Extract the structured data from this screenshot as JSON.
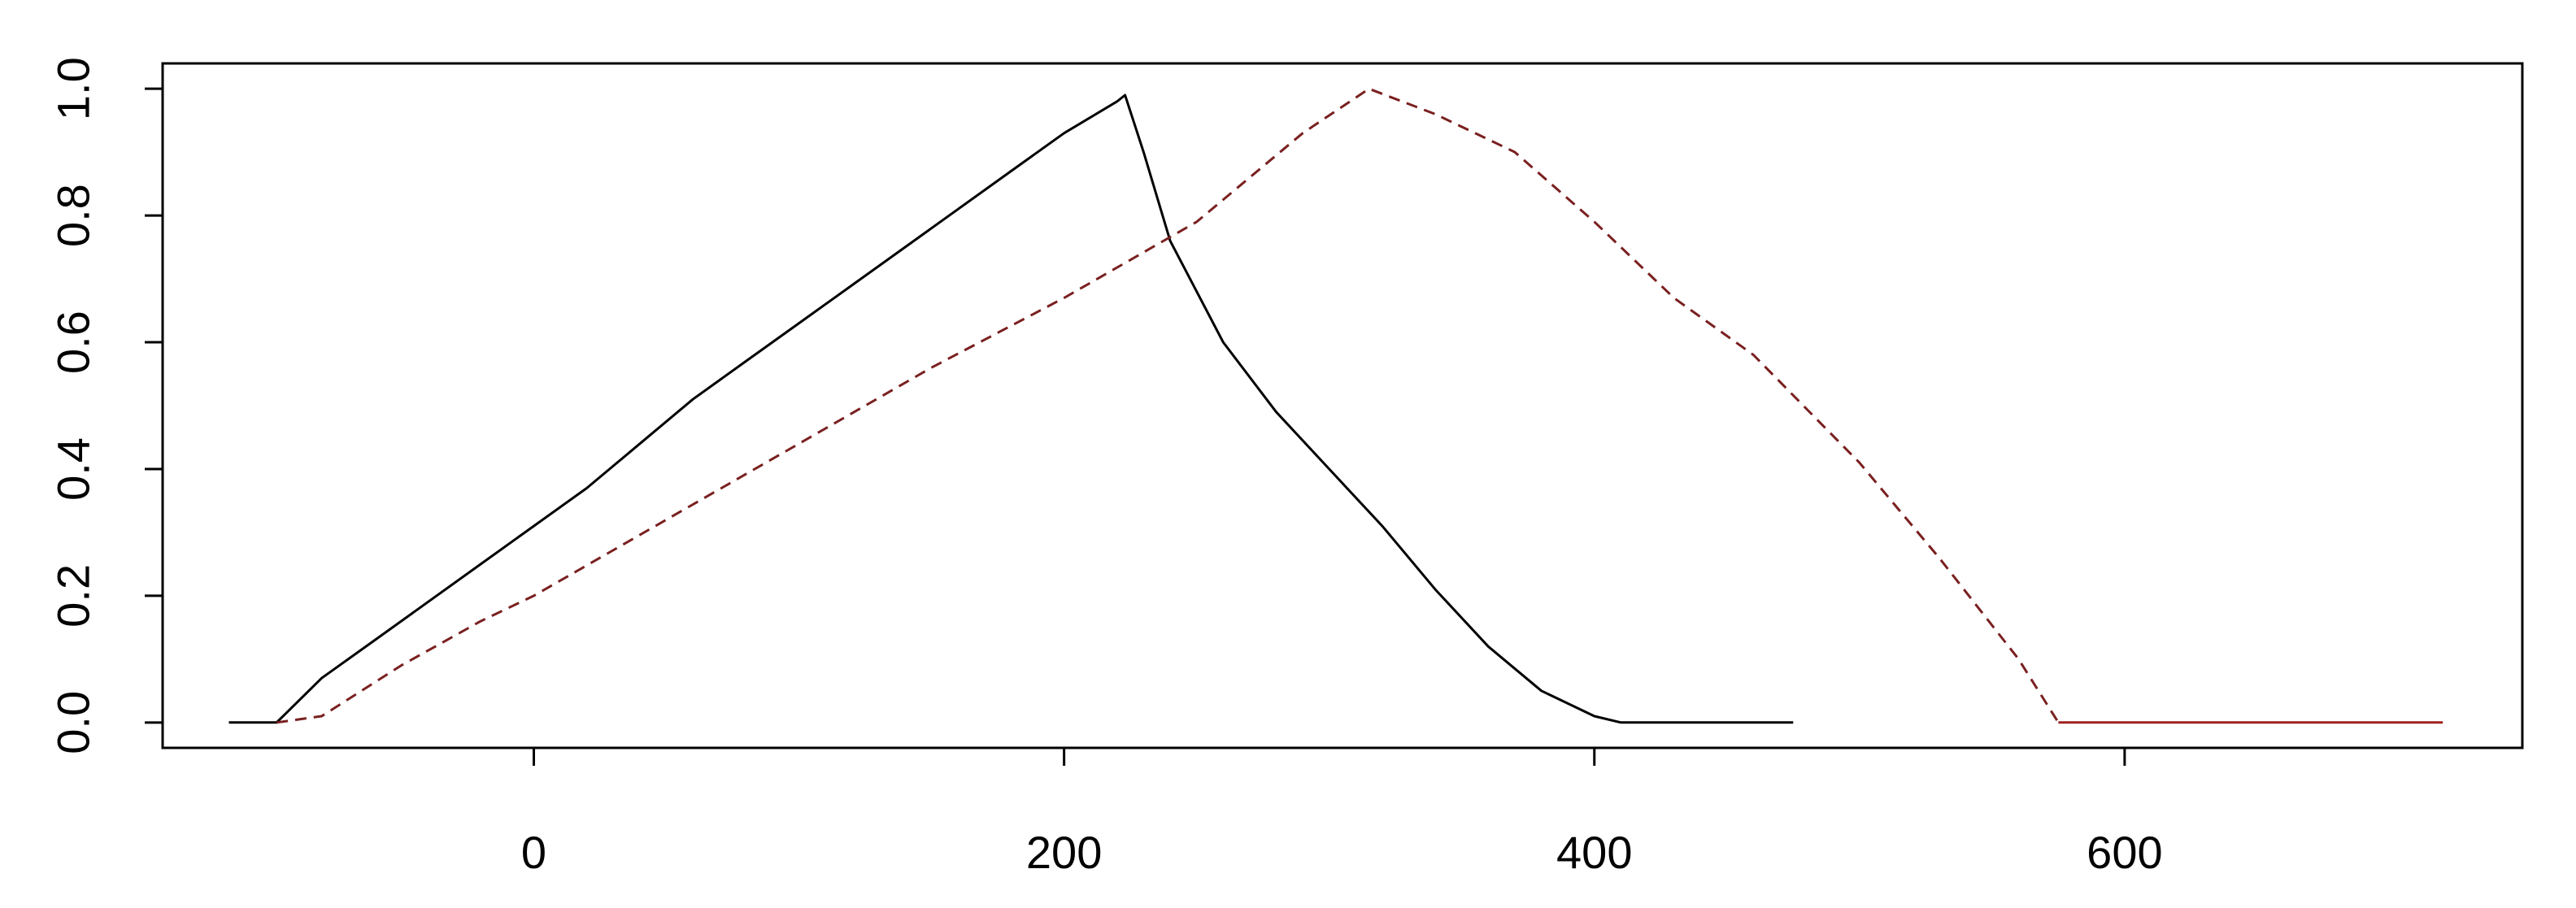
{
  "chart_data": {
    "type": "line",
    "title": "",
    "xlabel": "",
    "ylabel": "",
    "xlim": [
      -140,
      750
    ],
    "ylim": [
      -0.04,
      1.04
    ],
    "x_ticks": [
      0,
      200,
      400,
      600
    ],
    "x_tick_labels": [
      "0",
      "200",
      "400",
      "600"
    ],
    "y_ticks": [
      0.0,
      0.2,
      0.4,
      0.6,
      0.8,
      1.0
    ],
    "y_tick_labels": [
      "0.0",
      "0.2",
      "0.4",
      "0.6",
      "0.8",
      "1.0"
    ],
    "grid": false,
    "legend": "none",
    "series": [
      {
        "style": "solid",
        "color": "#000000",
        "x": [
          -115,
          -97,
          -80,
          -60,
          -40,
          -20,
          0,
          20,
          40,
          60,
          80,
          100,
          120,
          140,
          160,
          180,
          200,
          220,
          223,
          230,
          240,
          260,
          280,
          300,
          320,
          340,
          360,
          380,
          400,
          410,
          430,
          460,
          475
        ],
        "y": [
          0.0,
          0.0,
          0.07,
          0.13,
          0.19,
          0.25,
          0.31,
          0.37,
          0.44,
          0.51,
          0.57,
          0.63,
          0.69,
          0.75,
          0.81,
          0.87,
          0.93,
          0.98,
          0.99,
          0.9,
          0.76,
          0.6,
          0.49,
          0.4,
          0.31,
          0.21,
          0.12,
          0.05,
          0.01,
          0.0,
          0.0,
          0.0,
          0.0
        ]
      },
      {
        "style": "dashed",
        "color": "#7a2020",
        "x": [
          -97,
          -80,
          -50,
          -20,
          0,
          50,
          100,
          150,
          200,
          250,
          290,
          315,
          340,
          370,
          400,
          430,
          460,
          500,
          530,
          560,
          575
        ],
        "y": [
          0.0,
          0.01,
          0.09,
          0.16,
          0.2,
          0.32,
          0.44,
          0.56,
          0.67,
          0.79,
          0.93,
          1.0,
          0.96,
          0.9,
          0.79,
          0.67,
          0.58,
          0.41,
          0.26,
          0.1,
          0.0
        ]
      },
      {
        "style": "solid",
        "color": "#a02020",
        "x": [
          575,
          720
        ],
        "y": [
          0.0,
          0.0
        ]
      }
    ]
  }
}
